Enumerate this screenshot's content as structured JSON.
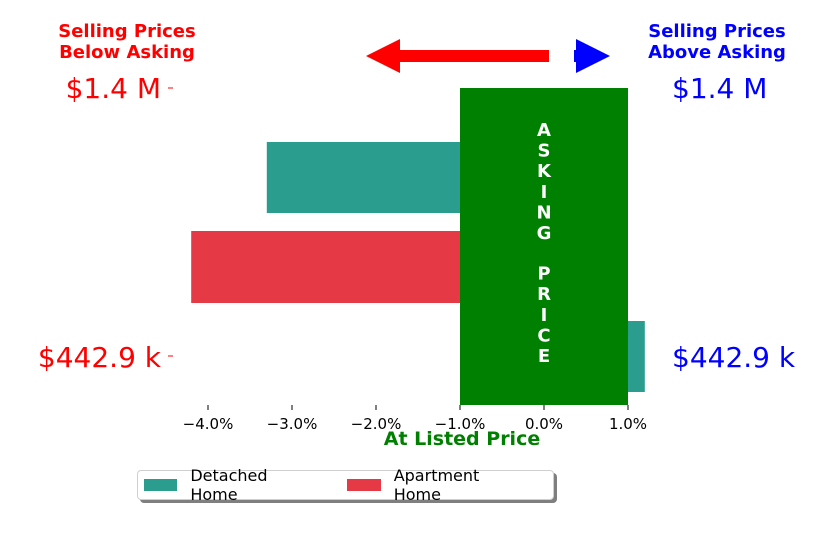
{
  "headers": {
    "below": [
      "Selling Prices",
      "Below Asking"
    ],
    "above": [
      "Selling Prices",
      "Above Asking"
    ]
  },
  "price_labels": {
    "top_left": "$1.4 M",
    "top_right": "$1.4 M",
    "bottom_left": "$442.9 k",
    "bottom_right": "$442.9 k"
  },
  "colors": {
    "below": "#ff0000",
    "above": "#0000ff",
    "asking": "#008000",
    "detached": "#2a9d8f",
    "apartment": "#e63946"
  },
  "chart_data": {
    "type": "bar",
    "orientation": "horizontal",
    "xlabel": "At Listed Price",
    "xlim": [
      -4.4,
      1.5
    ],
    "xticks": [
      -4.0,
      -3.0,
      -2.0,
      -1.0,
      0.0,
      1.0
    ],
    "xtick_labels": [
      "−4.0%",
      "−3.0%",
      "−2.0%",
      "−1.0%",
      "0.0%",
      "1.0%"
    ],
    "asking_band": {
      "label": "ASKING PRICE",
      "x_range": [
        -1.0,
        1.0
      ]
    },
    "series": [
      {
        "name": "Detached Home",
        "values": [
          -3.3,
          1.2
        ]
      },
      {
        "name": "Apartment Home",
        "values": [
          -4.2
        ]
      }
    ],
    "legend_position": "bottom"
  }
}
